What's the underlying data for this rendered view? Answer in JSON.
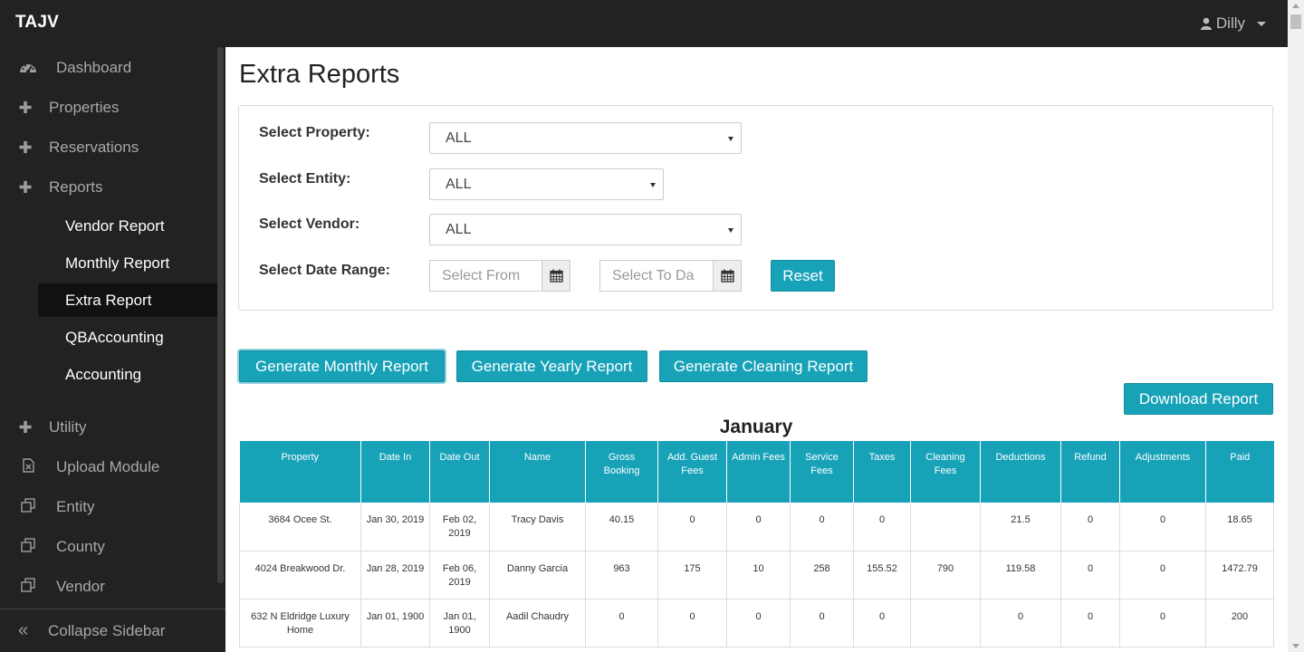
{
  "app": {
    "brand": "TAJV",
    "user": "Dilly"
  },
  "sidebar": {
    "items": [
      {
        "label": "Dashboard",
        "icon": "dashboard-icon"
      },
      {
        "label": "Properties",
        "icon": "plus-icon"
      },
      {
        "label": "Reservations",
        "icon": "plus-icon"
      },
      {
        "label": "Reports",
        "icon": "plus-icon"
      }
    ],
    "subitems": [
      {
        "label": "Vendor Report"
      },
      {
        "label": "Monthly Report"
      },
      {
        "label": "Extra Report",
        "active": true
      },
      {
        "label": "QBAccounting"
      },
      {
        "label": "Accounting"
      }
    ],
    "lower_items": [
      {
        "label": "Utility",
        "icon": "plus-icon"
      },
      {
        "label": "Upload Module",
        "icon": "file-excel-icon"
      },
      {
        "label": "Entity",
        "icon": "clone-icon"
      },
      {
        "label": "County",
        "icon": "clone-icon"
      },
      {
        "label": "Vendor",
        "icon": "clone-icon"
      }
    ],
    "collapse_label": "Collapse Sidebar"
  },
  "page": {
    "title": "Extra Reports"
  },
  "filters": {
    "property_label": "Select Property:",
    "property_value": "ALL",
    "entity_label": "Select Entity:",
    "entity_value": "ALL",
    "vendor_label": "Select Vendor:",
    "vendor_value": "ALL",
    "date_label": "Select Date Range:",
    "date_from_placeholder": "Select From",
    "date_to_placeholder": "Select To Da",
    "reset_label": "Reset"
  },
  "actions": {
    "monthly_label": "Generate Monthly Report",
    "yearly_label": "Generate Yearly Report",
    "cleaning_label": "Generate Cleaning Report",
    "download_label": "Download Report"
  },
  "report": {
    "month": "January",
    "columns": [
      "Property",
      "Date In",
      "Date Out",
      "Name",
      "Gross Booking",
      "Add. Guest Fees",
      "Admin Fees",
      "Service Fees",
      "Taxes",
      "Cleaning Fees",
      "Deductions",
      "Refund",
      "Adjustments",
      "Paid"
    ],
    "rows": [
      [
        "3684 Ocee St.",
        "Jan 30, 2019",
        "Feb 02, 2019",
        "Tracy Davis",
        "40.15",
        "0",
        "0",
        "0",
        "0",
        "",
        "21.5",
        "0",
        "0",
        "18.65"
      ],
      [
        "4024 Breakwood Dr.",
        "Jan 28, 2019",
        "Feb 06, 2019",
        "Danny Garcia",
        "963",
        "175",
        "10",
        "258",
        "155.52",
        "790",
        "119.58",
        "0",
        "0",
        "1472.79"
      ],
      [
        "632 N Eldridge Luxury Home",
        "Jan 01, 1900",
        "Jan 01, 1900",
        "Aadil Chaudry",
        "0",
        "0",
        "0",
        "0",
        "0",
        "",
        "0",
        "0",
        "0",
        "200"
      ]
    ]
  },
  "colors": {
    "accent": "#17a2b8",
    "sidebar_bg": "#222222"
  }
}
